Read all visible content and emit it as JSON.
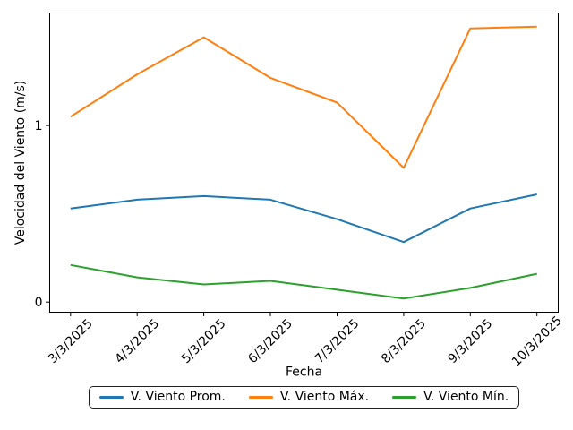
{
  "figure": {
    "background": "#ffffff"
  },
  "chart_data": {
    "type": "line",
    "title": "",
    "xlabel": "Fecha",
    "ylabel": "Velocidad del Viento (m/s)",
    "categories": [
      "3/3/2025",
      "4/3/2025",
      "5/3/2025",
      "6/3/2025",
      "7/3/2025",
      "8/3/2025",
      "9/3/2025",
      "10/3/2025"
    ],
    "series": [
      {
        "name": "V. Viento Prom.",
        "color": "#1f77b4",
        "values": [
          0.53,
          0.58,
          0.6,
          0.58,
          0.47,
          0.34,
          0.53,
          0.61
        ]
      },
      {
        "name": "V. Viento Máx.",
        "color": "#ff7f0e",
        "values": [
          1.05,
          1.29,
          1.5,
          1.27,
          1.13,
          0.76,
          1.55,
          1.56
        ]
      },
      {
        "name": "V. Viento Mín.",
        "color": "#2ca02c",
        "values": [
          0.21,
          0.14,
          0.1,
          0.12,
          0.07,
          0.02,
          0.08,
          0.16
        ]
      }
    ],
    "yticks": [
      0,
      1
    ],
    "ylim": [
      -0.06,
      1.64
    ],
    "grid": false,
    "legend_position": "below-x-axis-center",
    "x_tick_rotation_deg": 45,
    "axis_color": "#000000"
  }
}
